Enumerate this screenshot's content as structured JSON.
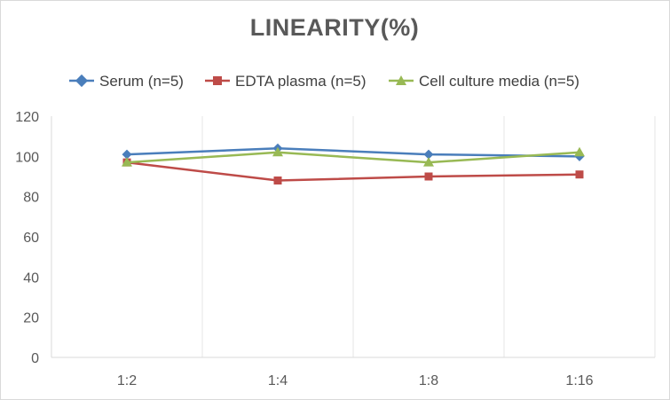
{
  "chart_data": {
    "type": "line",
    "title": "LINEARITY(%)",
    "categories": [
      "1:2",
      "1:4",
      "1:8",
      "1:16"
    ],
    "ylim": [
      0,
      120
    ],
    "yticks": [
      "0",
      "20",
      "40",
      "60",
      "80",
      "100",
      "120"
    ],
    "xlabel": "",
    "ylabel": "",
    "grid": "vertical",
    "legend_position": "top",
    "series": [
      {
        "name": "Serum (n=5)",
        "color": "#4a7ebb",
        "marker": "diamond",
        "values": [
          101,
          104,
          101,
          100
        ]
      },
      {
        "name": "EDTA plasma (n=5)",
        "color": "#be4b48",
        "marker": "square",
        "values": [
          97,
          88,
          90,
          91
        ]
      },
      {
        "name": "Cell culture media (n=5)",
        "color": "#98b954",
        "marker": "triangle",
        "values": [
          97,
          102,
          97,
          102
        ]
      }
    ]
  }
}
